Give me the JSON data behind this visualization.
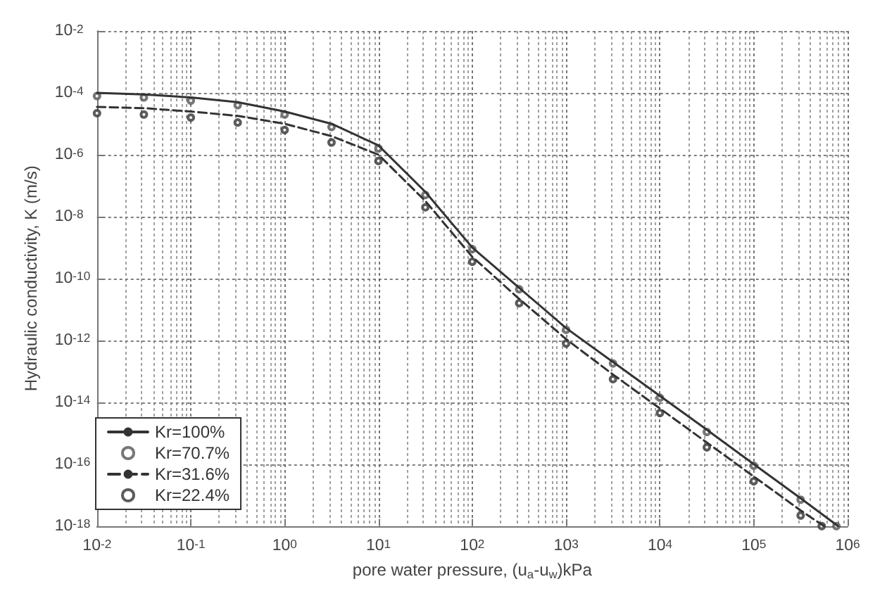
{
  "chart_data": {
    "type": "line",
    "xlabel": "pore water pressure, (u$_{a}$-u$_{w}$)kPa",
    "ylabel": "Hydraulic conductivity, K (m/s)",
    "log": "xy",
    "grid": true,
    "legend": "bottom left",
    "xlim": [
      0.01,
      1000000
    ],
    "ylim": [
      1e-18,
      0.01
    ],
    "xticks": [
      {
        "value": 0.01,
        "label": "10$^{-2}$"
      },
      {
        "value": 0.1,
        "label": "10$^{-1}$"
      },
      {
        "value": 1,
        "label": "10$^{0}$"
      },
      {
        "value": 10,
        "label": "10$^{1}$"
      },
      {
        "value": 100,
        "label": "10$^{2}$"
      },
      {
        "value": 1000,
        "label": "10$^{3}$"
      },
      {
        "value": 10000,
        "label": "10$^{4}$"
      },
      {
        "value": 100000,
        "label": "10$^{5}$"
      },
      {
        "value": 1000000,
        "label": "10$^{6}$"
      }
    ],
    "yticks": [
      {
        "value": 1e-18,
        "label": "10$^{-18}$"
      },
      {
        "value": 1e-16,
        "label": "10$^{-16}$"
      },
      {
        "value": 1e-14,
        "label": "10$^{-14}$"
      },
      {
        "value": 1e-12,
        "label": "10$^{-12}$"
      },
      {
        "value": 1e-10,
        "label": "10$^{-10}$"
      },
      {
        "value": 1e-08,
        "label": "10$^{-8}$"
      },
      {
        "value": 1e-06,
        "label": "10$^{-6}$"
      },
      {
        "value": 0.0001,
        "label": "10$^{-4}$"
      },
      {
        "value": 0.01,
        "label": "10$^{-2}$"
      }
    ],
    "series": [
      {
        "name": "Kr=100%",
        "color": "#333333",
        "line_style": "solid",
        "marker": "none",
        "x": [
          0.01,
          0.0316,
          0.1,
          0.316,
          1,
          3.16,
          10,
          31.6,
          100,
          316,
          1000,
          3160,
          10000,
          31600,
          100000,
          316000,
          790000
        ],
        "values": [
          0.0001,
          8.9e-05,
          7.1e-05,
          5e-05,
          2.5e-05,
          1e-05,
          2e-06,
          6.3e-08,
          1e-09,
          5e-11,
          2.5e-12,
          2e-13,
          1.6e-14,
          1.3e-15,
          1e-16,
          7.9e-18,
          1e-18
        ]
      },
      {
        "name": "Kr=70.7%",
        "type": "scatter",
        "color": "#555555",
        "marker": "circle",
        "x": [
          0.01,
          0.0316,
          0.1,
          0.316,
          1,
          3.16,
          10,
          31.6,
          100,
          316,
          1000,
          3160,
          10000,
          31600,
          100000,
          316000,
          760000
        ],
        "values": [
          7.9e-05,
          7.1e-05,
          5.6e-05,
          4e-05,
          2e-05,
          7.9e-06,
          1.6e-06,
          5e-08,
          8.9e-10,
          4.5e-11,
          2.2e-12,
          1.8e-13,
          1.4e-14,
          1.1e-15,
          8.9e-17,
          7.1e-18,
          1e-18
        ]
      },
      {
        "name": "Kr=31.6%",
        "color": "#333333",
        "line_style": "dashed",
        "marker": "none",
        "x": [
          0.01,
          0.0316,
          0.1,
          0.316,
          1,
          3.16,
          10,
          31.6,
          100,
          316,
          1000,
          3160,
          10000,
          31600,
          100000,
          316000,
          560000
        ],
        "values": [
          3.5e-05,
          3.2e-05,
          2.5e-05,
          1.8e-05,
          1e-05,
          4e-06,
          1e-06,
          3.2e-08,
          5e-10,
          2.2e-11,
          1.1e-12,
          7.9e-14,
          6.3e-15,
          5e-16,
          4e-17,
          3.2e-18,
          1e-18
        ]
      },
      {
        "name": "Kr=22.4%",
        "type": "scatter",
        "color": "#333333",
        "marker": "circle",
        "x": [
          0.01,
          0.0316,
          0.1,
          0.316,
          1,
          3.16,
          10,
          31.6,
          100,
          316,
          1000,
          3160,
          10000,
          31600,
          100000,
          316000,
          530000
        ],
        "values": [
          2.2e-05,
          2e-05,
          1.6e-05,
          1.1e-05,
          6.3e-06,
          2.5e-06,
          6.3e-07,
          2e-08,
          3.5e-10,
          1.6e-11,
          7.9e-13,
          5.6e-14,
          4.5e-15,
          3.5e-16,
          2.8e-17,
          2.2e-18,
          1e-18
        ]
      }
    ]
  }
}
